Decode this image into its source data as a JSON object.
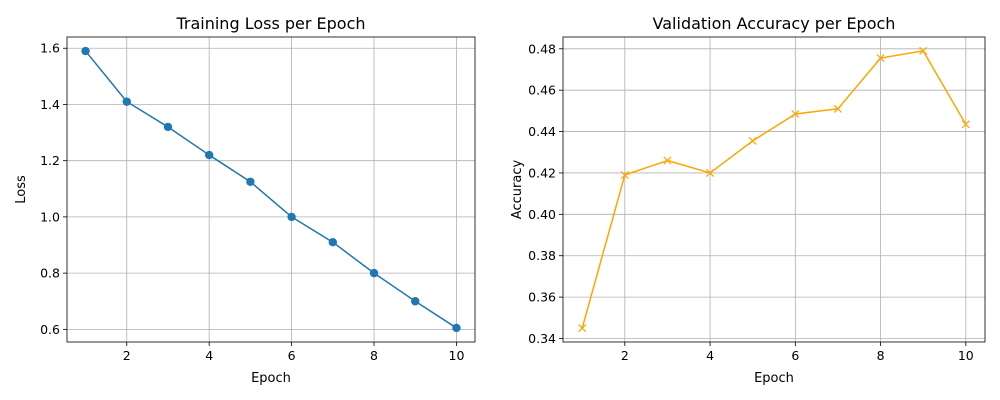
{
  "chart_data": [
    {
      "type": "line",
      "title": "Training Loss per Epoch",
      "xlabel": "Epoch",
      "ylabel": "Loss",
      "x": [
        1,
        2,
        3,
        4,
        5,
        6,
        7,
        8,
        9,
        10
      ],
      "series": [
        {
          "values": [
            1.59,
            1.41,
            1.32,
            1.22,
            1.125,
            1.0,
            0.91,
            0.8,
            0.7,
            0.605
          ],
          "color": "#1f77b4",
          "marker": "circle"
        }
      ],
      "xlim": [
        0.55,
        10.45
      ],
      "ylim": [
        0.555,
        1.64
      ],
      "xticks": [
        2,
        4,
        6,
        8,
        10
      ],
      "yticks": [
        0.6,
        0.8,
        1.0,
        1.2,
        1.4,
        1.6
      ],
      "xtick_labels": [
        "2",
        "4",
        "6",
        "8",
        "10"
      ],
      "ytick_labels": [
        "0.6",
        "0.8",
        "1.0",
        "1.2",
        "1.4",
        "1.6"
      ],
      "grid": true
    },
    {
      "type": "line",
      "title": "Validation Accuracy per Epoch",
      "xlabel": "Epoch",
      "ylabel": "Accuracy",
      "x": [
        1,
        2,
        3,
        4,
        5,
        6,
        7,
        8,
        9,
        10
      ],
      "series": [
        {
          "values": [
            0.345,
            0.419,
            0.426,
            0.42,
            0.4355,
            0.4485,
            0.451,
            0.4755,
            0.479,
            0.4435
          ],
          "color": "#ffa500",
          "marker": "x"
        }
      ],
      "xlim": [
        0.55,
        10.45
      ],
      "ylim": [
        0.3383,
        0.4857
      ],
      "xticks": [
        2,
        4,
        6,
        8,
        10
      ],
      "yticks": [
        0.34,
        0.36,
        0.38,
        0.4,
        0.42,
        0.44,
        0.46,
        0.48
      ],
      "xtick_labels": [
        "2",
        "4",
        "6",
        "8",
        "10"
      ],
      "ytick_labels": [
        "0.34",
        "0.36",
        "0.38",
        "0.40",
        "0.42",
        "0.44",
        "0.46",
        "0.48"
      ],
      "grid": true
    }
  ]
}
